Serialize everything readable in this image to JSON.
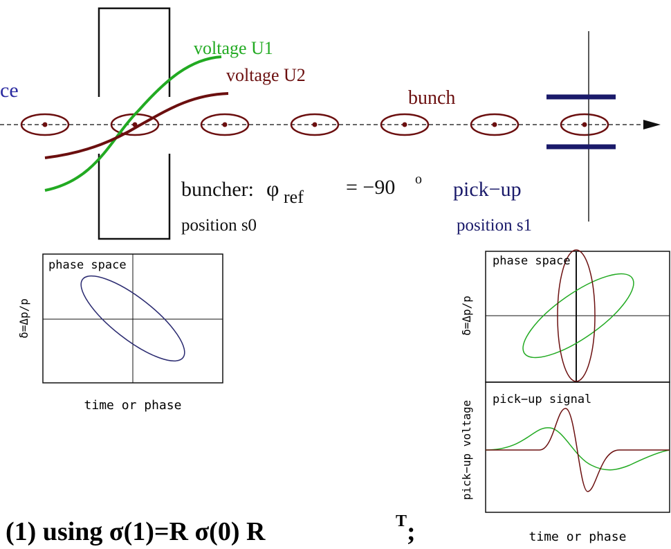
{
  "beamline": {
    "left_label": "ce",
    "voltage_u1": "voltage U1",
    "voltage_u2": "voltage U2",
    "bunch": "bunch",
    "buncher": "buncher:",
    "phi": "φ",
    "phi_sub": "ref",
    "phi_value": "= −90",
    "phi_sup": "o",
    "pickup": "pick−up",
    "position_s0": "position s0",
    "position_s1": "position s1"
  },
  "left_plot": {
    "title": "phase space",
    "ylabel": "δ=Δp/p",
    "xlabel": "time or phase"
  },
  "right_plot": {
    "title": "phase space",
    "ylabel": "δ=Δp/p"
  },
  "signal_plot": {
    "title": "pick−up signal",
    "ylabel": "pick−up voltage",
    "xlabel": "time or phase"
  },
  "footer": {
    "text": "(1) using σ(1)=R σ(0) R",
    "sup": "T",
    "end": ";"
  }
}
